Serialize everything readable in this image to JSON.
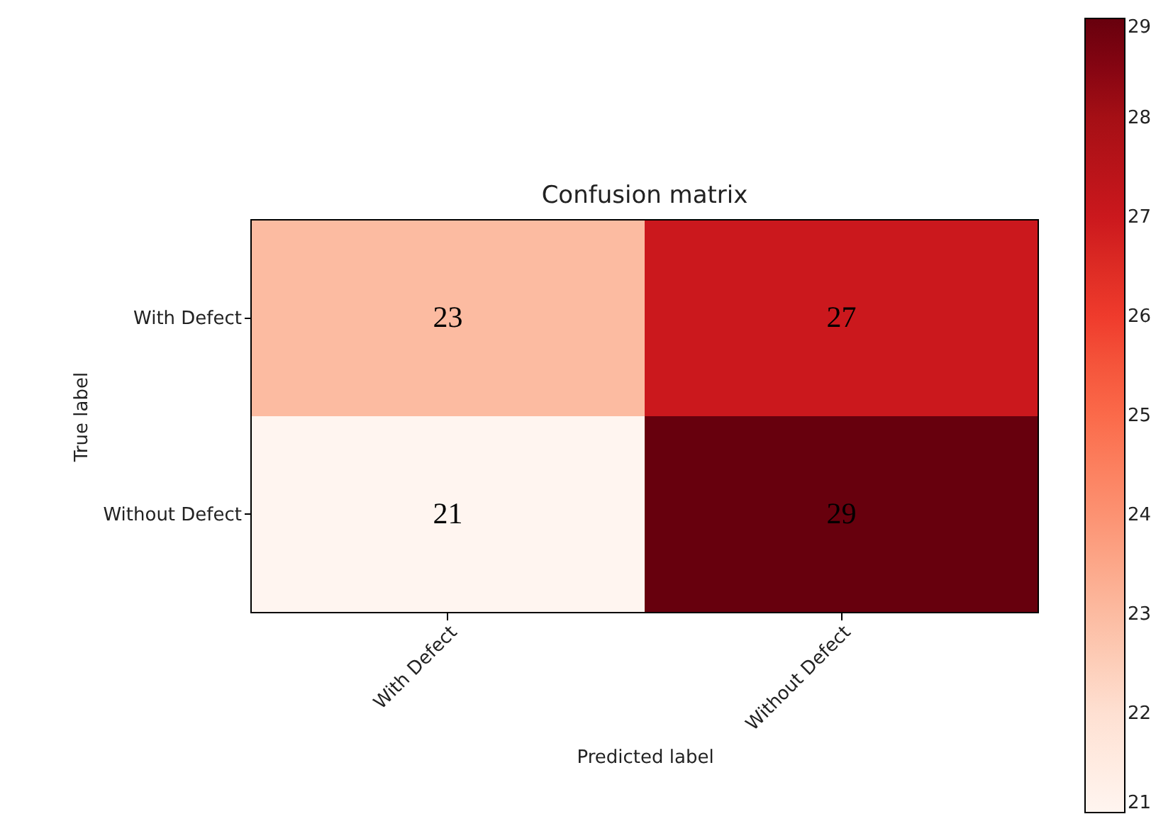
{
  "chart_data": {
    "type": "heatmap",
    "title": "Confusion matrix",
    "xlabel": "Predicted label",
    "ylabel": "True label",
    "categories": [
      "With Defect",
      "Without Defect"
    ],
    "y_categories": [
      "With Defect",
      "Without Defect"
    ],
    "cells": [
      [
        23,
        27
      ],
      [
        21,
        29
      ]
    ],
    "clim": [
      21,
      29
    ],
    "cticks": [
      21,
      22,
      23,
      24,
      25,
      26,
      27,
      28,
      29
    ],
    "data_labels": true,
    "grid": false
  }
}
